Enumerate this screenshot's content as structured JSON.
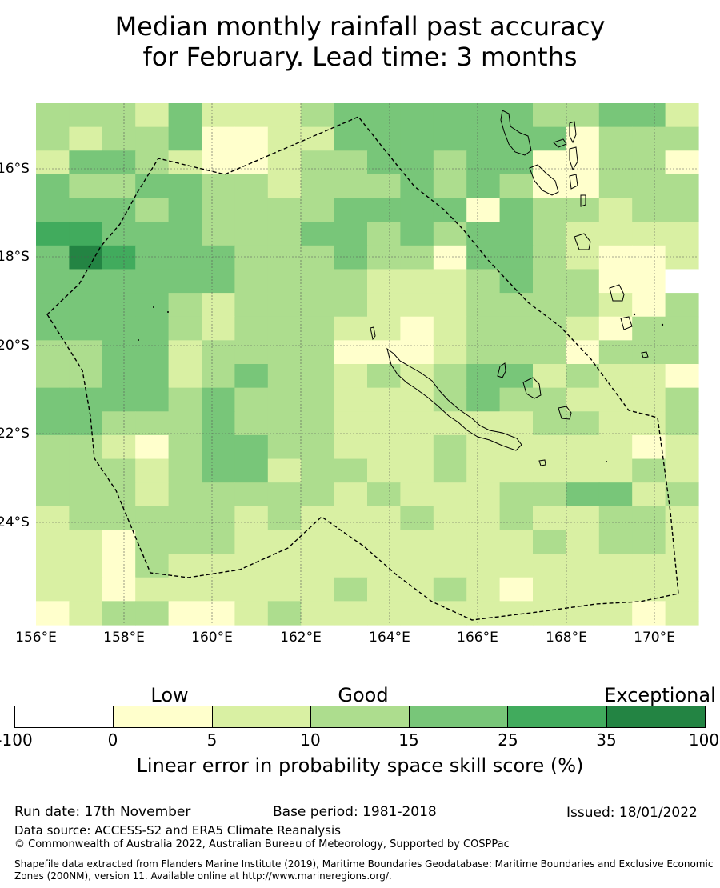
{
  "title_line1": "Median monthly rainfall past accuracy",
  "title_line2": "for February. Lead time: 3 months",
  "map": {
    "lon_ticks": [
      "156°E",
      "158°E",
      "160°E",
      "162°E",
      "164°E",
      "166°E",
      "168°E",
      "170°E"
    ],
    "lat_ticks": [
      "16°S",
      "18°S",
      "20°S",
      "22°S",
      "24°S"
    ],
    "grid": [
      "33324222344444433442",
      "32334112244444441333",
      "24432112334434411331",
      "43344332333434311333",
      "44434333344441433233",
      "55444333443434432222",
      "46544433343314432112",
      "44444433332223433110",
      "44443233332223333213",
      "44443233322123332133",
      "33442333311123331333",
      "33442343323234423221",
      "44443433322234332223",
      "44333433322222233223",
      "33213443322232222212",
      "33323442332232222232",
      "33323333323222334423",
      "23333323222322322332",
      "22133322222222232332",
      "22132222222222222222",
      "22122222232232122222",
      "12331123222222222212"
    ],
    "colors": {
      "0": "#ffffff",
      "1": "#ffffcc",
      "2": "#d9f0a3",
      "3": "#addd8e",
      "4": "#78c679",
      "5": "#41ab5d",
      "6": "#238443"
    }
  },
  "legend": {
    "categories": [
      "Low",
      "Good",
      "Exceptional"
    ],
    "ticks": [
      "-100",
      "0",
      "5",
      "10",
      "15",
      "25",
      "35",
      "100"
    ],
    "colors": [
      "#ffffff",
      "#ffffcc",
      "#d9f0a3",
      "#addd8e",
      "#78c679",
      "#41ab5d",
      "#238443"
    ],
    "label": "Linear error in probability space skill score (%)"
  },
  "footer": {
    "run_date": "Run date: 17th November",
    "base_period": "Base period: 1981-2018",
    "issued": "Issued: 18/01/2022",
    "data_source": "Data source: ACCESS-S2 and ERA5 Climate Reanalysis",
    "copyright": "© Commonwealth of Australia 2022, Australian Bureau of Meteorology, Supported by COSPPac",
    "shapefile_line1": "Shapefile data extracted from Flanders Marine Institute (2019), Maritime Boundaries Geodatabase: Maritime Boundaries and Exclusive Economic",
    "shapefile_line2": "Zones (200NM), version 11. Available online at http://www.marineregions.org/."
  }
}
